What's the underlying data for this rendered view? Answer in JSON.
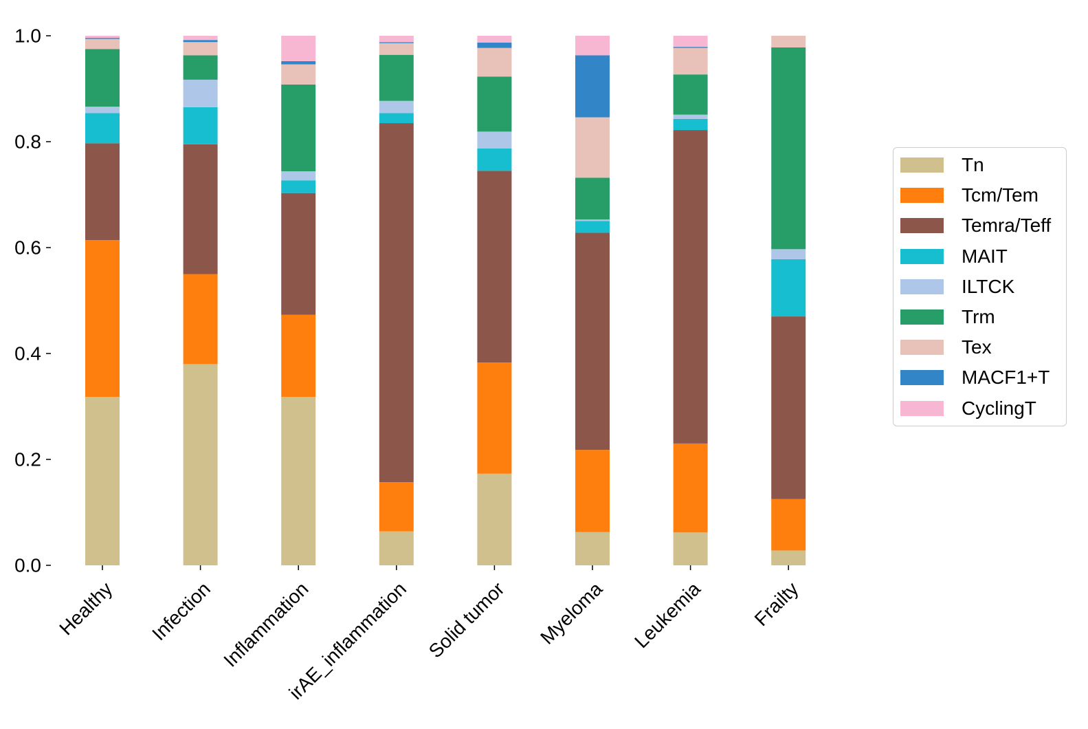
{
  "chart_data": {
    "type": "bar",
    "stacked": true,
    "categories": [
      "Healthy",
      "Infection",
      "Inflammation",
      "irAE_inflammation",
      "Solid tumor",
      "Myeloma",
      "Leukemia",
      "Frailty"
    ],
    "ylim": [
      0,
      1.0
    ],
    "yticks": [
      "0.0",
      "0.2",
      "0.4",
      "0.6",
      "0.8",
      "1.0"
    ],
    "grid": false,
    "legend_position": "right",
    "series": [
      {
        "name": "Tn",
        "color": "#cfc08e",
        "values": [
          0.318,
          0.38,
          0.318,
          0.064,
          0.173,
          0.063,
          0.062,
          0.028
        ]
      },
      {
        "name": "Tcm/Tem",
        "color": "#ff7f0e",
        "values": [
          0.296,
          0.17,
          0.155,
          0.093,
          0.21,
          0.155,
          0.168,
          0.097
        ]
      },
      {
        "name": "Temra/Teff",
        "color": "#8c564b",
        "values": [
          0.183,
          0.245,
          0.23,
          0.678,
          0.362,
          0.41,
          0.592,
          0.345
        ]
      },
      {
        "name": "MAIT",
        "color": "#17becf",
        "values": [
          0.057,
          0.07,
          0.024,
          0.019,
          0.042,
          0.022,
          0.021,
          0.108
        ]
      },
      {
        "name": "ILTCK",
        "color": "#aec7e8",
        "values": [
          0.012,
          0.052,
          0.017,
          0.023,
          0.032,
          0.003,
          0.008,
          0.019
        ]
      },
      {
        "name": "Trm",
        "color": "#279e68",
        "values": [
          0.109,
          0.046,
          0.164,
          0.087,
          0.104,
          0.079,
          0.076,
          0.381
        ]
      },
      {
        "name": "Tex",
        "color": "#e8c1b9",
        "values": [
          0.019,
          0.025,
          0.038,
          0.022,
          0.054,
          0.114,
          0.05,
          0.022
        ]
      },
      {
        "name": "MACF1+T",
        "color": "#3286c8",
        "values": [
          0.002,
          0.004,
          0.006,
          0.002,
          0.01,
          0.117,
          0.002,
          0.0
        ]
      },
      {
        "name": "CyclingT",
        "color": "#f7b6d2",
        "values": [
          0.004,
          0.008,
          0.048,
          0.012,
          0.013,
          0.037,
          0.021,
          0.0
        ]
      }
    ]
  }
}
